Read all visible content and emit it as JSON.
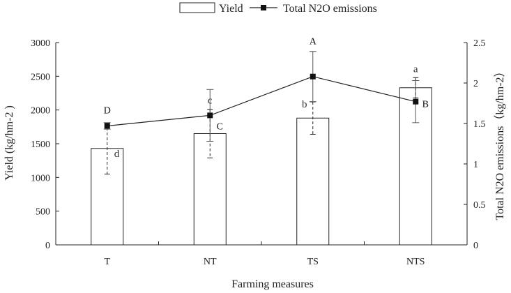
{
  "chart_data": {
    "type": "bar+line",
    "xlabel": "Farming measures",
    "categories": [
      "T",
      "NT",
      "TS",
      "NTS"
    ],
    "ylabel_left": "Yield (kg/hm-2 )",
    "ylabel_right": "Total N2O emissions（kg/hm-2）",
    "ylim_left": [
      0,
      3000
    ],
    "ylim_right": [
      0,
      2.5
    ],
    "yticks_left": [
      "0",
      "500",
      "1000",
      "1500",
      "2000",
      "2500",
      "3000"
    ],
    "yticks_right": [
      "0",
      "0.5",
      "1",
      "1.5",
      "2",
      "2.5"
    ],
    "legend": {
      "placement": "top-center",
      "bar_label": "Yield",
      "line_label": "Total N2O emissions"
    },
    "bar_series": {
      "name": "Yield",
      "values": [
        1430,
        1650,
        1880,
        2330
      ],
      "error": [
        380,
        360,
        240,
        150
      ],
      "letters": [
        "d",
        "c",
        "b",
        "a"
      ]
    },
    "line_series": {
      "name": "Total N2O emissions",
      "values": [
        1.47,
        1.6,
        2.08,
        1.77
      ],
      "error": [
        0.04,
        0.32,
        0.31,
        0.26
      ],
      "letters": [
        "D",
        "C",
        "A",
        "B"
      ]
    },
    "colors": {
      "bar_fill": "#ffffff",
      "bar_stroke": "#222222",
      "line": "#222222",
      "marker": "#111111",
      "axis": "#222222"
    }
  }
}
